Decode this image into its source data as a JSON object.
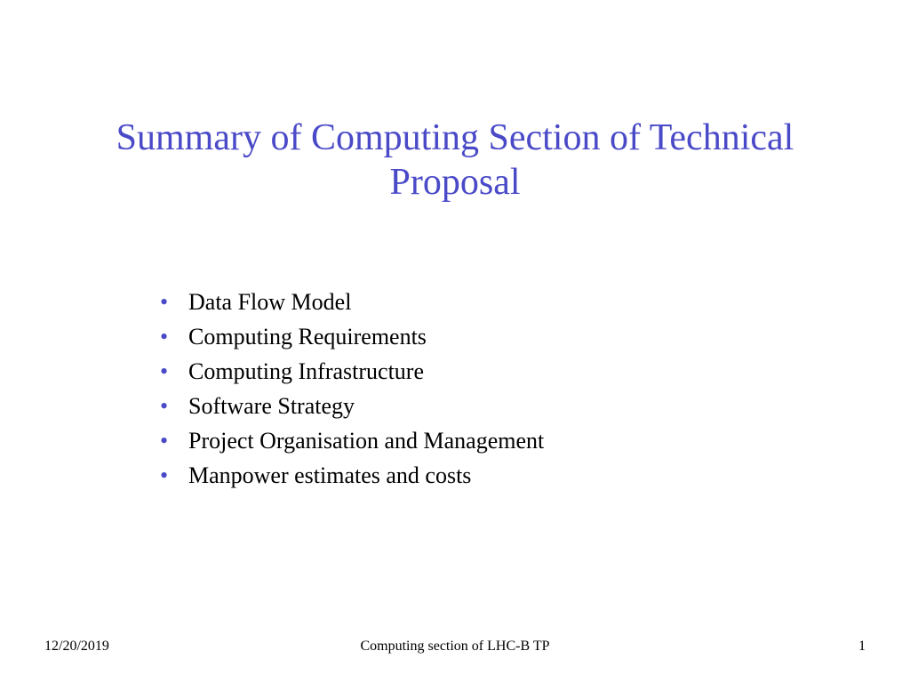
{
  "slide": {
    "title": "Summary of Computing Section of Technical Proposal",
    "title_color": "#4a4ac8",
    "title_fontsize": 42,
    "bullets": [
      "Data Flow Model",
      "Computing Requirements",
      "Computing Infrastructure",
      "Software Strategy",
      "Project Organisation and Management",
      "Manpower estimates and costs"
    ],
    "bullet_color": "#4a4ac8",
    "bullet_text_color": "#000000",
    "bullet_fontsize": 26,
    "background_color": "#ffffff"
  },
  "footer": {
    "date": "12/20/2019",
    "center": "Computing section of LHC-B TP",
    "page": "1",
    "fontsize": 16,
    "color": "#000000"
  }
}
